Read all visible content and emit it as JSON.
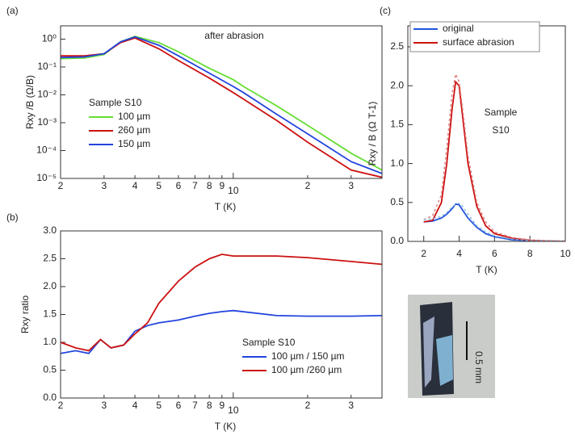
{
  "chart_data": [
    {
      "type": "line",
      "panel_label": "(a)",
      "xlabel": "T (K)",
      "ylabel": "Rxy /B (Ω/B)",
      "annotation": "after abrasion",
      "xlog": true,
      "ylog": true,
      "xlim": [
        2,
        40
      ],
      "ylim": [
        1e-05,
        3
      ],
      "xticks": [
        2,
        3,
        4,
        5,
        6,
        7,
        8,
        9,
        10,
        {
          "value": 20,
          "label": "2"
        },
        {
          "value": 30,
          "label": "3"
        }
      ],
      "yticks": [
        {
          "value": 1e-05,
          "label": "10⁻⁵"
        },
        {
          "value": 0.0001,
          "label": "10⁻⁴"
        },
        {
          "value": 0.001,
          "label": "10⁻³"
        },
        {
          "value": 0.01,
          "label": "10⁻²"
        },
        {
          "value": 0.1,
          "label": "10⁻¹"
        },
        {
          "value": 1,
          "label": "10⁰"
        }
      ],
      "legend_title": "Sample S10",
      "x": [
        2,
        2.5,
        3,
        3.5,
        4,
        5,
        6,
        8,
        10,
        11,
        15,
        20,
        30,
        40
      ],
      "series": [
        {
          "name": "100 µm",
          "color": "#66dd33",
          "values": [
            0.2,
            0.21,
            0.28,
            0.8,
            1.25,
            0.75,
            0.35,
            0.09,
            0.035,
            0.02,
            0.004,
            0.0008,
            8e-05,
            2e-05
          ]
        },
        {
          "name": "260 µm",
          "color": "#cc1111",
          "values": [
            0.25,
            0.25,
            0.3,
            0.75,
            1.1,
            0.45,
            0.17,
            0.04,
            0.012,
            0.007,
            0.0012,
            0.0002,
            2e-05,
            1.1e-05
          ]
        },
        {
          "name": "150 µm",
          "color": "#2244dd",
          "values": [
            0.22,
            0.23,
            0.3,
            0.8,
            1.2,
            0.6,
            0.25,
            0.06,
            0.02,
            0.012,
            0.002,
            0.0004,
            4e-05,
            1.5e-05
          ]
        }
      ]
    },
    {
      "type": "line",
      "panel_label": "(b)",
      "xlabel": "T (K)",
      "ylabel": "Rxy ratio",
      "xlog": true,
      "ylog": false,
      "xlim": [
        2,
        40
      ],
      "ylim": [
        0,
        3
      ],
      "xticks": [
        2,
        3,
        4,
        5,
        6,
        7,
        8,
        9,
        10,
        {
          "value": 20,
          "label": "2"
        },
        {
          "value": 30,
          "label": "3"
        }
      ],
      "yticks": [
        {
          "value": 0,
          "label": "0.0"
        },
        0.5,
        {
          "value": 1,
          "label": "1.0"
        },
        1.5,
        {
          "value": 2,
          "label": "2.0"
        },
        2.5,
        {
          "value": 3,
          "label": "3.0"
        }
      ],
      "legend_title": "Sample S10",
      "x": [
        2,
        2.3,
        2.6,
        2.9,
        3.2,
        3.6,
        4,
        4.5,
        5,
        6,
        7,
        8,
        9,
        10,
        15,
        20,
        30,
        40
      ],
      "series": [
        {
          "name": "100 µm / 150 µm",
          "color": "#2244dd",
          "values": [
            0.8,
            0.85,
            0.8,
            1.05,
            0.9,
            0.95,
            1.2,
            1.3,
            1.35,
            1.4,
            1.47,
            1.52,
            1.55,
            1.57,
            1.48,
            1.47,
            1.47,
            1.48
          ]
        },
        {
          "name": "100 µm /260 µm",
          "color": "#cc1111",
          "values": [
            1.0,
            0.9,
            0.85,
            1.05,
            0.9,
            0.95,
            1.15,
            1.35,
            1.7,
            2.1,
            2.35,
            2.5,
            2.58,
            2.55,
            2.55,
            2.52,
            2.45,
            2.4
          ]
        }
      ]
    },
    {
      "type": "line",
      "panel_label": "(c)",
      "xlabel": "T (K)",
      "ylabel": "Rxy / B  (Ω T-1)",
      "annotation": [
        "Sample",
        "S10"
      ],
      "xlog": false,
      "ylog": false,
      "xlim": [
        1.1,
        10
      ],
      "ylim": [
        0,
        2.77
      ],
      "xticks": [
        2,
        4,
        6,
        8,
        10
      ],
      "yticks": [
        {
          "value": 0,
          "label": "0.0"
        },
        0.5,
        {
          "value": 1,
          "label": "1.0"
        },
        1.5,
        {
          "value": 2,
          "label": "2.0"
        },
        2.5
      ],
      "x": [
        2,
        2.5,
        3,
        3.3,
        3.6,
        3.8,
        4,
        4.2,
        4.5,
        5,
        5.5,
        6,
        7,
        8,
        9,
        10
      ],
      "series": [
        {
          "name": "original",
          "color": "#2255dd",
          "values": [
            0.25,
            0.26,
            0.3,
            0.35,
            0.42,
            0.48,
            0.47,
            0.4,
            0.3,
            0.18,
            0.1,
            0.06,
            0.02,
            0.01,
            0.005,
            0
          ]
        },
        {
          "name": "surface abrasion",
          "color": "#cc1111",
          "values": [
            0.25,
            0.27,
            0.5,
            1.0,
            1.7,
            2.05,
            2.0,
            1.6,
            1.0,
            0.45,
            0.2,
            0.1,
            0.04,
            0.015,
            0.005,
            0
          ]
        },
        {
          "color": "#e08080",
          "dash": true,
          "values": [
            0.28,
            0.33,
            0.6,
            1.2,
            1.9,
            2.15,
            2.05,
            1.7,
            1.1,
            0.5,
            0.25,
            0.12,
            0.05,
            0.02,
            0.01,
            0.005
          ]
        },
        {
          "color": "#88bbdd",
          "dash": true,
          "values": [
            0.28,
            0.29,
            0.32,
            0.37,
            0.44,
            0.48,
            0.49,
            0.45,
            0.35,
            0.2,
            0.12,
            0.07,
            0.03,
            0.01,
            0.005,
            0.003
          ]
        }
      ]
    }
  ],
  "image": {
    "scale_label": "0.5 mm"
  }
}
